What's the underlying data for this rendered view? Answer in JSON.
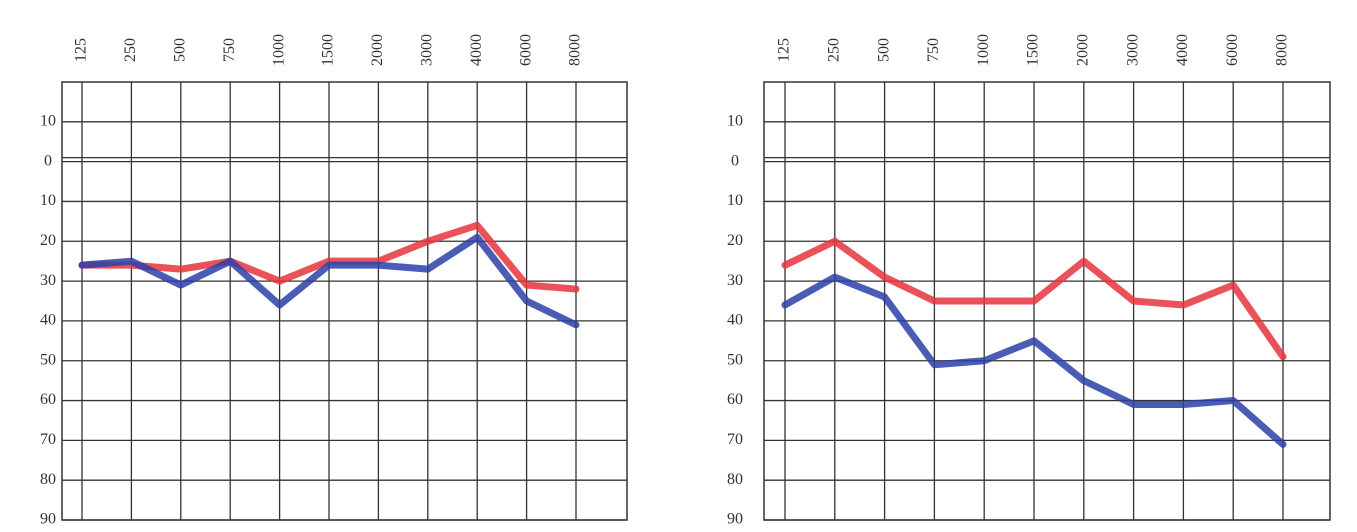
{
  "chart_data": [
    {
      "type": "line",
      "categories": [
        "125",
        "250",
        "500",
        "750",
        "1000",
        "1500",
        "2000",
        "3000",
        "4000",
        "6000",
        "8000"
      ],
      "series": [
        {
          "color": "#e8323c",
          "values": [
            26,
            26,
            27,
            25,
            30,
            25,
            25,
            20,
            16,
            31,
            32
          ]
        },
        {
          "color": "#2b3fa8",
          "values": [
            26,
            25,
            31,
            25,
            36,
            26,
            26,
            27,
            19,
            35,
            41
          ]
        }
      ],
      "ylim": [
        -20,
        90
      ],
      "y_reversed": true,
      "yticks": [
        {
          "value": -10,
          "label": "10"
        },
        0,
        10,
        20,
        30,
        40,
        50,
        60,
        70,
        80,
        90
      ],
      "grid": true
    },
    {
      "type": "line",
      "categories": [
        "125",
        "250",
        "500",
        "750",
        "1000",
        "1500",
        "2000",
        "3000",
        "4000",
        "6000",
        "8000"
      ],
      "series": [
        {
          "color": "#e8323c",
          "values": [
            26,
            20,
            29,
            35,
            35,
            35,
            25,
            35,
            36,
            31,
            49
          ]
        },
        {
          "color": "#2b3fa8",
          "values": [
            36,
            29,
            34,
            51,
            50,
            45,
            55,
            61,
            61,
            60,
            71
          ]
        }
      ],
      "ylim": [
        -20,
        90
      ],
      "y_reversed": true,
      "yticks": [
        {
          "value": -10,
          "label": "10"
        },
        0,
        10,
        20,
        30,
        40,
        50,
        60,
        70,
        80,
        90
      ],
      "grid": true
    }
  ]
}
